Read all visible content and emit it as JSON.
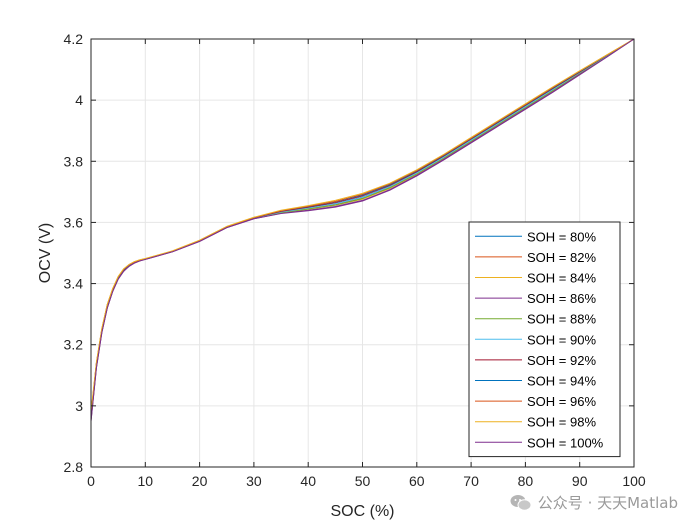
{
  "chart_data": {
    "type": "line",
    "title": "",
    "xlabel": "SOC (%)",
    "ylabel": "OCV (V)",
    "xlim": [
      0,
      100
    ],
    "ylim": [
      2.8,
      4.2
    ],
    "xticks": [
      0,
      10,
      20,
      30,
      40,
      50,
      60,
      70,
      80,
      90,
      100
    ],
    "yticks": [
      2.8,
      3,
      3.2,
      3.4,
      3.6,
      3.8,
      4,
      4.2
    ],
    "ytick_labels": [
      "2.8",
      "3",
      "3.2",
      "3.4",
      "3.6",
      "3.8",
      "4",
      "4.2"
    ],
    "grid": true,
    "legend_position": "lower-right",
    "x": [
      0,
      1,
      2,
      3,
      4,
      5,
      6,
      7,
      8,
      9,
      10,
      12,
      15,
      20,
      25,
      30,
      35,
      40,
      45,
      50,
      55,
      60,
      65,
      70,
      75,
      80,
      85,
      90,
      95,
      100
    ],
    "series": [
      {
        "name": "SOH = 80%",
        "color": "#0072BD",
        "values": [
          2.97,
          3.14,
          3.25,
          3.33,
          3.38,
          3.42,
          3.445,
          3.46,
          3.47,
          3.476,
          3.48,
          3.49,
          3.505,
          3.54,
          3.585,
          3.615,
          3.635,
          3.648,
          3.662,
          3.683,
          3.718,
          3.763,
          3.815,
          3.87,
          3.925,
          3.98,
          4.035,
          4.09,
          4.145,
          4.2
        ]
      },
      {
        "name": "SOH = 82%",
        "color": "#D95319",
        "values": [
          2.96,
          3.13,
          3.245,
          3.325,
          3.378,
          3.418,
          3.443,
          3.459,
          3.469,
          3.475,
          3.48,
          3.49,
          3.505,
          3.539,
          3.584,
          3.614,
          3.633,
          3.645,
          3.658,
          3.679,
          3.714,
          3.76,
          3.812,
          3.867,
          3.922,
          3.977,
          4.032,
          4.088,
          4.144,
          4.2
        ]
      },
      {
        "name": "SOH = 84%",
        "color": "#EDB120",
        "values": [
          2.955,
          3.128,
          3.243,
          3.323,
          3.377,
          3.417,
          3.442,
          3.458,
          3.468,
          3.475,
          3.48,
          3.49,
          3.505,
          3.539,
          3.584,
          3.613,
          3.632,
          3.643,
          3.656,
          3.676,
          3.711,
          3.757,
          3.81,
          3.865,
          3.92,
          3.975,
          4.03,
          4.087,
          4.143,
          4.2
        ]
      },
      {
        "name": "SOH = 86%",
        "color": "#7E2F8E",
        "values": [
          2.95,
          3.125,
          3.24,
          3.32,
          3.375,
          3.415,
          3.44,
          3.457,
          3.467,
          3.474,
          3.479,
          3.489,
          3.504,
          3.538,
          3.583,
          3.612,
          3.63,
          3.64,
          3.652,
          3.672,
          3.707,
          3.754,
          3.807,
          3.862,
          3.917,
          3.972,
          4.027,
          4.085,
          4.142,
          4.2
        ]
      },
      {
        "name": "SOH = 88%",
        "color": "#77AC30",
        "values": [
          2.955,
          3.128,
          3.242,
          3.322,
          3.376,
          3.416,
          3.441,
          3.458,
          3.468,
          3.475,
          3.48,
          3.49,
          3.505,
          3.539,
          3.584,
          3.613,
          3.632,
          3.644,
          3.657,
          3.678,
          3.713,
          3.759,
          3.811,
          3.866,
          3.921,
          3.976,
          4.031,
          4.088,
          4.144,
          4.2
        ]
      },
      {
        "name": "SOH = 90%",
        "color": "#4DBEEE",
        "values": [
          2.96,
          3.132,
          3.246,
          3.326,
          3.379,
          3.419,
          3.444,
          3.459,
          3.469,
          3.476,
          3.48,
          3.49,
          3.505,
          3.54,
          3.585,
          3.614,
          3.634,
          3.647,
          3.661,
          3.682,
          3.717,
          3.762,
          3.814,
          3.869,
          3.924,
          3.979,
          4.034,
          4.09,
          4.145,
          4.2
        ]
      },
      {
        "name": "SOH = 92%",
        "color": "#A2142F",
        "values": [
          2.965,
          3.135,
          3.248,
          3.328,
          3.38,
          3.42,
          3.445,
          3.46,
          3.47,
          3.476,
          3.48,
          3.49,
          3.505,
          3.54,
          3.585,
          3.615,
          3.636,
          3.65,
          3.665,
          3.687,
          3.721,
          3.766,
          3.818,
          3.873,
          3.928,
          3.983,
          4.038,
          4.092,
          4.146,
          4.2
        ]
      },
      {
        "name": "SOH = 94%",
        "color": "#0072BD",
        "values": [
          2.97,
          3.138,
          3.25,
          3.33,
          3.382,
          3.421,
          3.446,
          3.461,
          3.471,
          3.477,
          3.481,
          3.491,
          3.506,
          3.541,
          3.586,
          3.616,
          3.638,
          3.652,
          3.668,
          3.69,
          3.724,
          3.769,
          3.82,
          3.875,
          3.93,
          3.985,
          4.04,
          4.094,
          4.147,
          4.2
        ]
      },
      {
        "name": "SOH = 96%",
        "color": "#D95319",
        "values": [
          2.975,
          3.14,
          3.252,
          3.331,
          3.383,
          3.422,
          3.447,
          3.462,
          3.471,
          3.477,
          3.481,
          3.491,
          3.506,
          3.541,
          3.586,
          3.616,
          3.638,
          3.653,
          3.669,
          3.692,
          3.726,
          3.77,
          3.821,
          3.876,
          3.931,
          3.986,
          4.041,
          4.095,
          4.148,
          4.2
        ]
      },
      {
        "name": "SOH = 98%",
        "color": "#EDB120",
        "values": [
          2.98,
          3.143,
          3.254,
          3.332,
          3.384,
          3.423,
          3.448,
          3.462,
          3.472,
          3.478,
          3.482,
          3.492,
          3.507,
          3.542,
          3.587,
          3.617,
          3.64,
          3.655,
          3.672,
          3.695,
          3.728,
          3.772,
          3.823,
          3.878,
          3.933,
          3.988,
          4.043,
          4.096,
          4.148,
          4.2
        ]
      },
      {
        "name": "SOH = 100%",
        "color": "#7E2F8E",
        "values": [
          2.95,
          3.125,
          3.24,
          3.32,
          3.374,
          3.414,
          3.44,
          3.456,
          3.467,
          3.474,
          3.479,
          3.489,
          3.504,
          3.538,
          3.583,
          3.612,
          3.629,
          3.638,
          3.65,
          3.67,
          3.705,
          3.752,
          3.805,
          3.86,
          3.915,
          3.97,
          4.025,
          4.083,
          4.141,
          4.2
        ]
      }
    ]
  },
  "watermark": {
    "text": "公众号 · 天天Matlab",
    "icon": "wechat-icon"
  }
}
